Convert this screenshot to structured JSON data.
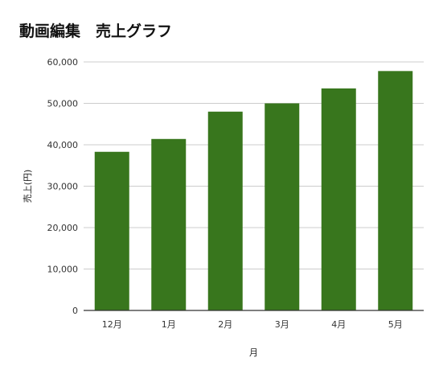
{
  "chart_data": {
    "type": "bar",
    "title": "動画編集　売上グラフ",
    "xlabel": "月",
    "ylabel": "売上(円)",
    "categories": [
      "12月",
      "1月",
      "2月",
      "3月",
      "4月",
      "5月"
    ],
    "values": [
      38300,
      41400,
      48000,
      50000,
      53600,
      57800
    ],
    "ylim": [
      0,
      60000
    ],
    "yticks": [
      0,
      10000,
      20000,
      30000,
      40000,
      50000,
      60000
    ],
    "ytick_labels": [
      "0",
      "10,000",
      "20,000",
      "30,000",
      "40,000",
      "50,000",
      "60,000"
    ],
    "grid": true,
    "legend": "none",
    "bar_color": "#38761d",
    "grid_color": "#cccccc",
    "axis_color": "#333333"
  }
}
